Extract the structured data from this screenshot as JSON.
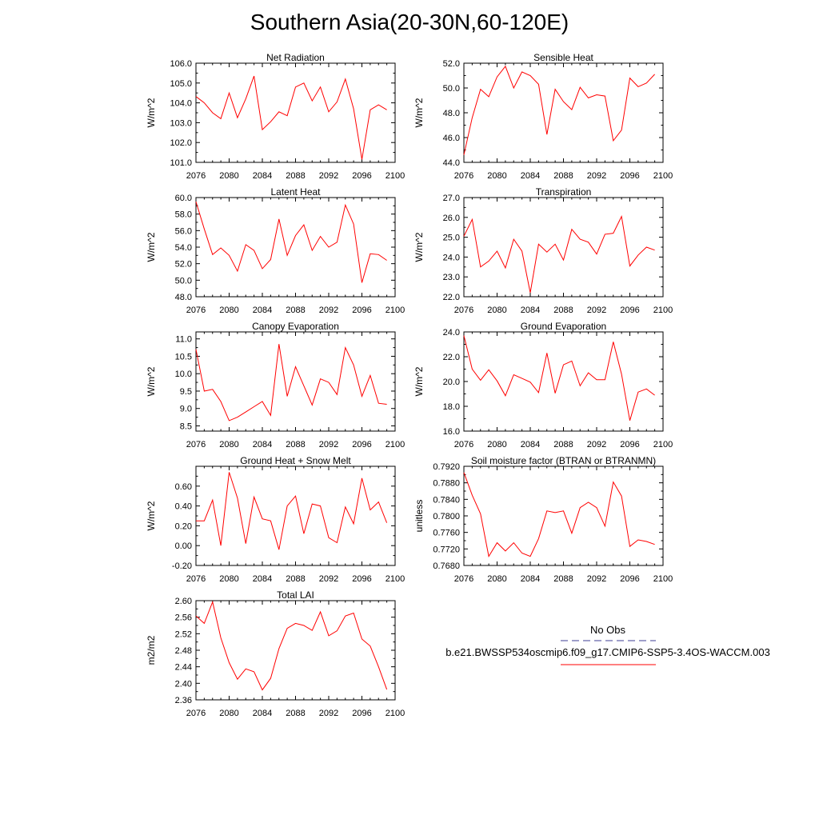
{
  "title": "Southern Asia(20-30N,60-120E)",
  "legend": {
    "obs_label": "No Obs",
    "model_label": "b.e21.BWSSP534oscmip6.f09_g17.CMIP6-SSP5-3.4OS-WACCM.003",
    "obs_color": "#3c3c96",
    "model_color": "#ff0000"
  },
  "chart_data": [
    {
      "type": "line",
      "title": "Net Radiation",
      "ylabel": "W/m^2",
      "xlim": [
        2076,
        2100
      ],
      "ylim": [
        101.0,
        106.0
      ],
      "xticks": [
        2076,
        2080,
        2084,
        2088,
        2092,
        2096,
        2100
      ],
      "yticks": [
        101.0,
        102.0,
        103.0,
        104.0,
        105.0,
        106.0
      ],
      "ytick_labels": [
        "101.0",
        "102.0",
        "103.0",
        "104.0",
        "105.0",
        "106.0"
      ],
      "x": [
        2076,
        2077,
        2078,
        2079,
        2080,
        2081,
        2082,
        2083,
        2084,
        2085,
        2086,
        2087,
        2088,
        2089,
        2090,
        2091,
        2092,
        2093,
        2094,
        2095,
        2096,
        2097,
        2098,
        2099
      ],
      "series": [
        {
          "values": [
            104.32,
            104.0,
            103.5,
            103.2,
            104.5,
            103.25,
            104.2,
            105.35,
            102.65,
            103.05,
            103.55,
            103.35,
            104.8,
            105.0,
            104.1,
            104.8,
            103.55,
            104.05,
            105.2,
            103.7,
            101.15,
            103.65,
            103.9,
            103.65
          ]
        }
      ]
    },
    {
      "type": "line",
      "title": "Sensible Heat",
      "ylabel": "W/m^2",
      "xlim": [
        2076,
        2100
      ],
      "ylim": [
        44.0,
        52.0
      ],
      "xticks": [
        2076,
        2080,
        2084,
        2088,
        2092,
        2096,
        2100
      ],
      "yticks": [
        44.0,
        46.0,
        48.0,
        50.0,
        52.0
      ],
      "ytick_labels": [
        "44.0",
        "46.0",
        "48.0",
        "50.0",
        "52.0"
      ],
      "x": [
        2076,
        2077,
        2078,
        2079,
        2080,
        2081,
        2082,
        2083,
        2084,
        2085,
        2086,
        2087,
        2088,
        2089,
        2090,
        2091,
        2092,
        2093,
        2094,
        2095,
        2096,
        2097,
        2098,
        2099
      ],
      "series": [
        {
          "values": [
            44.6,
            47.6,
            49.9,
            49.3,
            50.9,
            51.75,
            50.0,
            51.3,
            51.0,
            50.3,
            46.25,
            49.9,
            48.9,
            48.25,
            50.05,
            49.2,
            49.45,
            49.35,
            45.75,
            46.6,
            50.8,
            50.1,
            50.4,
            51.1
          ]
        }
      ]
    },
    {
      "type": "line",
      "title": "Latent Heat",
      "ylabel": "W/m^2",
      "xlim": [
        2076,
        2100
      ],
      "ylim": [
        48.0,
        60.0
      ],
      "xticks": [
        2076,
        2080,
        2084,
        2088,
        2092,
        2096,
        2100
      ],
      "yticks": [
        48.0,
        50.0,
        52.0,
        54.0,
        56.0,
        58.0,
        60.0
      ],
      "ytick_labels": [
        "48.0",
        "50.0",
        "52.0",
        "54.0",
        "56.0",
        "58.0",
        "60.0"
      ],
      "x": [
        2076,
        2077,
        2078,
        2079,
        2080,
        2081,
        2082,
        2083,
        2084,
        2085,
        2086,
        2087,
        2088,
        2089,
        2090,
        2091,
        2092,
        2093,
        2094,
        2095,
        2096,
        2097,
        2098,
        2099
      ],
      "series": [
        {
          "values": [
            59.5,
            56.2,
            53.1,
            53.9,
            53.0,
            51.1,
            54.3,
            53.6,
            51.4,
            52.5,
            57.4,
            53.0,
            55.4,
            56.7,
            53.6,
            55.3,
            54.0,
            54.6,
            59.1,
            56.8,
            49.7,
            53.2,
            53.1,
            52.4
          ]
        }
      ]
    },
    {
      "type": "line",
      "title": "Transpiration",
      "ylabel": "W/m^2",
      "xlim": [
        2076,
        2100
      ],
      "ylim": [
        22.0,
        27.0
      ],
      "xticks": [
        2076,
        2080,
        2084,
        2088,
        2092,
        2096,
        2100
      ],
      "yticks": [
        22.0,
        23.0,
        24.0,
        25.0,
        26.0,
        27.0
      ],
      "ytick_labels": [
        "22.0",
        "23.0",
        "24.0",
        "25.0",
        "26.0",
        "27.0"
      ],
      "x": [
        2076,
        2077,
        2078,
        2079,
        2080,
        2081,
        2082,
        2083,
        2084,
        2085,
        2086,
        2087,
        2088,
        2089,
        2090,
        2091,
        2092,
        2093,
        2094,
        2095,
        2096,
        2097,
        2098,
        2099
      ],
      "series": [
        {
          "values": [
            25.05,
            25.9,
            23.5,
            23.8,
            24.3,
            23.45,
            24.9,
            24.3,
            22.2,
            24.65,
            24.25,
            24.65,
            23.85,
            25.4,
            24.9,
            24.75,
            24.15,
            25.15,
            25.2,
            26.05,
            23.55,
            24.1,
            24.5,
            24.35
          ]
        }
      ]
    },
    {
      "type": "line",
      "title": "Canopy Evaporation",
      "ylabel": "W/m^2",
      "xlim": [
        2076,
        2100
      ],
      "ylim": [
        8.35,
        11.2
      ],
      "xticks": [
        2076,
        2080,
        2084,
        2088,
        2092,
        2096,
        2100
      ],
      "yticks": [
        8.5,
        9.0,
        9.5,
        10.0,
        10.5,
        11.0
      ],
      "ytick_labels": [
        "8.5",
        "9.0",
        "9.5",
        "10.0",
        "10.5",
        "11.0"
      ],
      "x": [
        2076,
        2077,
        2078,
        2079,
        2080,
        2081,
        2082,
        2083,
        2084,
        2085,
        2086,
        2087,
        2088,
        2089,
        2090,
        2091,
        2092,
        2093,
        2094,
        2095,
        2096,
        2097,
        2098,
        2099
      ],
      "series": [
        {
          "values": [
            10.7,
            9.5,
            9.55,
            9.2,
            8.65,
            8.75,
            8.9,
            9.05,
            9.2,
            8.8,
            10.85,
            9.35,
            10.2,
            9.65,
            9.1,
            9.85,
            9.75,
            9.4,
            10.75,
            10.25,
            9.35,
            9.95,
            9.15,
            9.12
          ]
        }
      ]
    },
    {
      "type": "line",
      "title": "Ground Evaporation",
      "ylabel": "W/m^2",
      "xlim": [
        2076,
        2100
      ],
      "ylim": [
        16.0,
        24.0
      ],
      "xticks": [
        2076,
        2080,
        2084,
        2088,
        2092,
        2096,
        2100
      ],
      "yticks": [
        16.0,
        18.0,
        20.0,
        22.0,
        24.0
      ],
      "ytick_labels": [
        "16.0",
        "18.0",
        "20.0",
        "22.0",
        "24.0"
      ],
      "x": [
        2076,
        2077,
        2078,
        2079,
        2080,
        2081,
        2082,
        2083,
        2084,
        2085,
        2086,
        2087,
        2088,
        2089,
        2090,
        2091,
        2092,
        2093,
        2094,
        2095,
        2096,
        2097,
        2098,
        2099
      ],
      "series": [
        {
          "values": [
            23.7,
            21.0,
            20.1,
            20.95,
            20.05,
            18.85,
            20.55,
            20.25,
            19.95,
            19.1,
            22.3,
            19.05,
            21.35,
            21.65,
            19.65,
            20.7,
            20.15,
            20.15,
            23.2,
            20.6,
            16.85,
            19.15,
            19.4,
            18.9
          ]
        }
      ]
    },
    {
      "type": "line",
      "title": "Ground Heat + Snow Melt",
      "ylabel": "W/m^2",
      "xlim": [
        2076,
        2100
      ],
      "ylim": [
        -0.2,
        0.8
      ],
      "xticks": [
        2076,
        2080,
        2084,
        2088,
        2092,
        2096,
        2100
      ],
      "yticks": [
        -0.2,
        0.0,
        0.2,
        0.4,
        0.6
      ],
      "ytick_labels": [
        "-0.20",
        "0.00",
        "0.20",
        "0.40",
        "0.60"
      ],
      "x": [
        2076,
        2077,
        2078,
        2079,
        2080,
        2081,
        2082,
        2083,
        2084,
        2085,
        2086,
        2087,
        2088,
        2089,
        2090,
        2091,
        2092,
        2093,
        2094,
        2095,
        2096,
        2097,
        2098,
        2099
      ],
      "series": [
        {
          "values": [
            0.25,
            0.25,
            0.46,
            0.0,
            0.74,
            0.48,
            0.02,
            0.49,
            0.27,
            0.25,
            -0.04,
            0.4,
            0.5,
            0.12,
            0.42,
            0.4,
            0.08,
            0.03,
            0.39,
            0.22,
            0.68,
            0.36,
            0.44,
            0.23
          ]
        }
      ]
    },
    {
      "type": "line",
      "title": "Soil moisture factor (BTRAN or BTRANMN)",
      "ylabel": "unitless",
      "xlim": [
        2076,
        2100
      ],
      "ylim": [
        0.768,
        0.792
      ],
      "xticks": [
        2076,
        2080,
        2084,
        2088,
        2092,
        2096,
        2100
      ],
      "yticks": [
        0.768,
        0.772,
        0.776,
        0.78,
        0.784,
        0.788,
        0.792
      ],
      "ytick_labels": [
        "0.7680",
        "0.7720",
        "0.7760",
        "0.7800",
        "0.7840",
        "0.7880",
        "0.7920"
      ],
      "x": [
        2076,
        2077,
        2078,
        2079,
        2080,
        2081,
        2082,
        2083,
        2084,
        2085,
        2086,
        2087,
        2088,
        2089,
        2090,
        2091,
        2092,
        2093,
        2094,
        2095,
        2096,
        2097,
        2098,
        2099
      ],
      "series": [
        {
          "values": [
            0.7905,
            0.785,
            0.7805,
            0.7702,
            0.7735,
            0.7715,
            0.7735,
            0.771,
            0.7702,
            0.7745,
            0.7812,
            0.7808,
            0.7812,
            0.7758,
            0.782,
            0.7833,
            0.782,
            0.7775,
            0.7882,
            0.7848,
            0.7726,
            0.7742,
            0.7738,
            0.7731
          ]
        }
      ]
    },
    {
      "type": "line",
      "title": "Total LAI",
      "ylabel": "m2/m2",
      "xlim": [
        2076,
        2100
      ],
      "ylim": [
        2.36,
        2.6
      ],
      "xticks": [
        2076,
        2080,
        2084,
        2088,
        2092,
        2096,
        2100
      ],
      "yticks": [
        2.36,
        2.4,
        2.44,
        2.48,
        2.52,
        2.56,
        2.6
      ],
      "ytick_labels": [
        "2.36",
        "2.40",
        "2.44",
        "2.48",
        "2.52",
        "2.56",
        "2.60"
      ],
      "x": [
        2076,
        2077,
        2078,
        2079,
        2080,
        2081,
        2082,
        2083,
        2084,
        2085,
        2086,
        2087,
        2088,
        2089,
        2090,
        2091,
        2092,
        2093,
        2094,
        2095,
        2096,
        2097,
        2098,
        2099
      ],
      "series": [
        {
          "values": [
            2.563,
            2.545,
            2.597,
            2.51,
            2.45,
            2.41,
            2.435,
            2.428,
            2.384,
            2.412,
            2.484,
            2.533,
            2.545,
            2.54,
            2.528,
            2.573,
            2.515,
            2.527,
            2.563,
            2.57,
            2.507,
            2.49,
            2.44,
            2.385
          ]
        }
      ]
    }
  ]
}
